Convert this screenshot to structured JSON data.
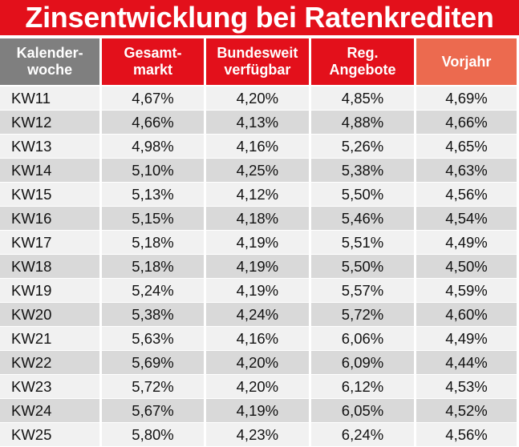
{
  "title": "Zinsentwicklung bei Ratenkrediten",
  "colors": {
    "title_bg": "#e3101b",
    "header_gray": "#7f7f7f",
    "header_red": "#e3101b",
    "header_salmon": "#ec6a4f"
  },
  "headers": [
    {
      "line1": "Kalender-",
      "line2": "woche"
    },
    {
      "line1": "Gesamt-",
      "line2": "markt"
    },
    {
      "line1": "Bundesweit",
      "line2": "verfügbar"
    },
    {
      "line1": "Reg.",
      "line2": "Angebote"
    },
    {
      "line1": "Vorjahr",
      "line2": ""
    }
  ],
  "chart_data": {
    "type": "table",
    "title": "Zinsentwicklung bei Ratenkrediten",
    "columns": [
      "Kalenderwoche",
      "Gesamtmarkt",
      "Bundesweit verfügbar",
      "Reg. Angebote",
      "Vorjahr"
    ],
    "rows": [
      [
        "KW11",
        "4,67%",
        "4,20%",
        "4,85%",
        "4,69%"
      ],
      [
        "KW12",
        "4,66%",
        "4,13%",
        "4,88%",
        "4,66%"
      ],
      [
        "KW13",
        "4,98%",
        "4,16%",
        "5,26%",
        "4,65%"
      ],
      [
        "KW14",
        "5,10%",
        "4,25%",
        "5,38%",
        "4,63%"
      ],
      [
        "KW15",
        "5,13%",
        "4,12%",
        "5,50%",
        "4,56%"
      ],
      [
        "KW16",
        "5,15%",
        "4,18%",
        "5,46%",
        "4,54%"
      ],
      [
        "KW17",
        "5,18%",
        "4,19%",
        "5,51%",
        "4,49%"
      ],
      [
        "KW18",
        "5,18%",
        "4,19%",
        "5,50%",
        "4,50%"
      ],
      [
        "KW19",
        "5,24%",
        "4,19%",
        "5,57%",
        "4,59%"
      ],
      [
        "KW20",
        "5,38%",
        "4,24%",
        "5,72%",
        "4,60%"
      ],
      [
        "KW21",
        "5,63%",
        "4,16%",
        "6,06%",
        "4,49%"
      ],
      [
        "KW22",
        "5,69%",
        "4,20%",
        "6,09%",
        "4,44%"
      ],
      [
        "KW23",
        "5,72%",
        "4,20%",
        "6,12%",
        "4,53%"
      ],
      [
        "KW24",
        "5,67%",
        "4,19%",
        "6,05%",
        "4,52%"
      ],
      [
        "KW25",
        "5,80%",
        "4,23%",
        "6,24%",
        "4,56%"
      ]
    ]
  }
}
